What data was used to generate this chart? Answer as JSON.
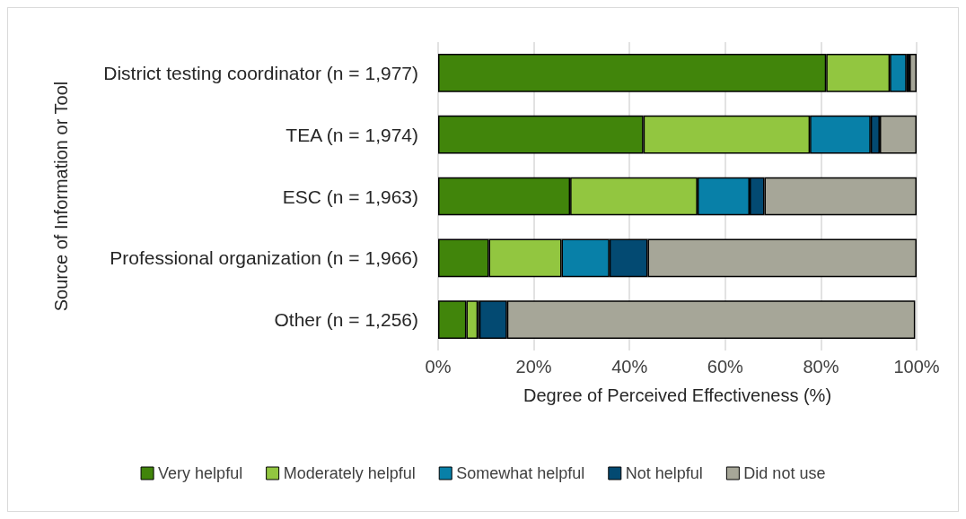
{
  "chart_data": {
    "type": "bar",
    "orientation": "horizontal",
    "stacked": true,
    "ylabel": "Source of Information or Tool",
    "xlabel": "Degree of Perceived Effectiveness (%)",
    "categories": [
      "District testing coordinator (n = 1,977)",
      "TEA (n = 1,974)",
      "ESC (n = 1,963)",
      "Professional organization (n = 1,966)",
      "Other (n = 1,256)"
    ],
    "series": [
      {
        "name": "Very helpful",
        "color": "#41850b",
        "values": [
          81.1,
          42.9,
          27.6,
          10.6,
          5.9
        ]
      },
      {
        "name": "Moderately helpful",
        "color": "#92c640",
        "values": [
          13.3,
          34.8,
          26.6,
          15.2,
          2.4
        ]
      },
      {
        "name": "Somewhat helpful",
        "color": "#0880a8",
        "values": [
          3.5,
          12.7,
          10.9,
          10.0,
          0.3
        ]
      },
      {
        "name": "Not helpful",
        "color": "#034a72",
        "values": [
          0.6,
          1.9,
          3.1,
          8.0,
          5.8
        ]
      },
      {
        "name": "Did not use",
        "color": "#a6a698",
        "values": [
          1.5,
          7.7,
          31.8,
          56.2,
          85.3
        ]
      }
    ],
    "xlim": [
      0,
      100
    ],
    "xticks": [
      {
        "value": 0,
        "label": "0%"
      },
      {
        "value": 20,
        "label": "20%"
      },
      {
        "value": 40,
        "label": "40%"
      },
      {
        "value": 60,
        "label": "60%"
      },
      {
        "value": 80,
        "label": "80%"
      },
      {
        "value": 100,
        "label": "100%"
      }
    ],
    "grid": "x",
    "legend": "bottom"
  }
}
